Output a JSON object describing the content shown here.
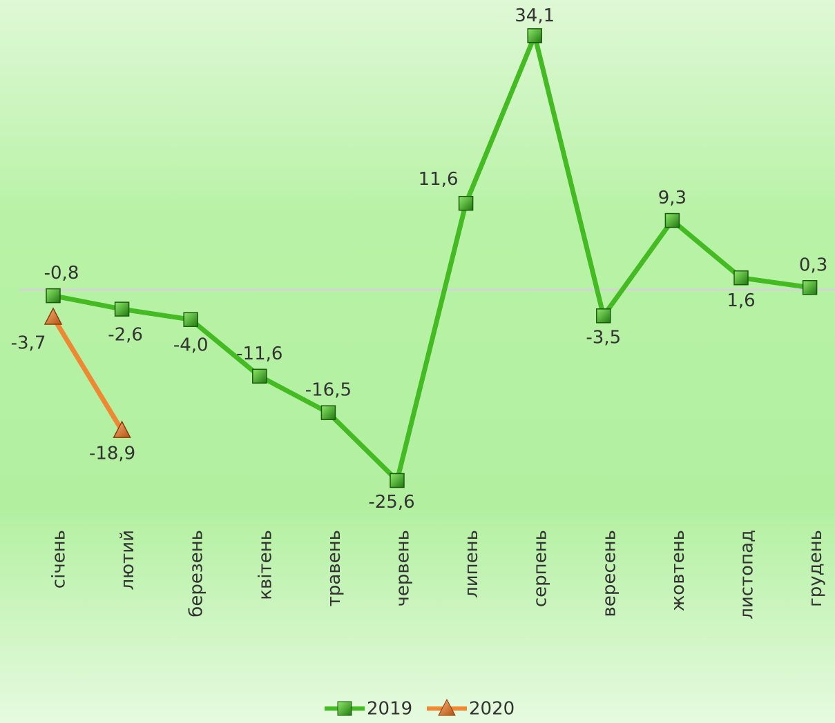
{
  "chart_data": {
    "type": "line",
    "categories": [
      "січень",
      "лютий",
      "березень",
      "квітень",
      "травень",
      "червень",
      "липень",
      "серпень",
      "вересень",
      "жовтень",
      "листопад",
      "грудень"
    ],
    "series": [
      {
        "name": "2019",
        "color": "#44bb22",
        "marker": "square",
        "values": [
          -0.8,
          -2.6,
          -4.0,
          -11.6,
          -16.5,
          -25.6,
          11.6,
          34.1,
          -3.5,
          9.3,
          1.6,
          0.3
        ],
        "value_labels": [
          "-0,8",
          "-2,6",
          "-4,0",
          "-11,6",
          "-16,5",
          "-25,6",
          "11,6",
          "34,1",
          "-3,5",
          "9,3",
          "1,6",
          "0,3"
        ]
      },
      {
        "name": "2020",
        "color": "#ee8833",
        "marker": "triangle",
        "values": [
          -3.7,
          -18.9,
          null,
          null,
          null,
          null,
          null,
          null,
          null,
          null,
          null,
          null
        ],
        "value_labels": [
          "-3,7",
          "-18,9",
          null,
          null,
          null,
          null,
          null,
          null,
          null,
          null,
          null,
          null
        ]
      }
    ],
    "ylim": [
      -30,
      36
    ],
    "legend": "bottom"
  }
}
